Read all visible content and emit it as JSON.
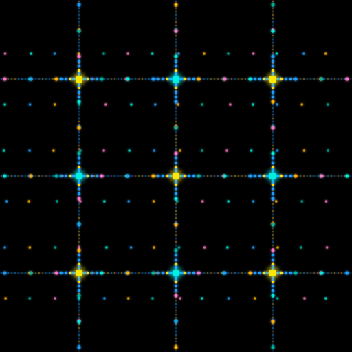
{
  "scene": {
    "description_name": "diffraction-lattice-pattern",
    "background": "#000000",
    "palette": {
      "yellow": "#ffe600",
      "cyan": "#00f0e0",
      "blue": "#1ea0ff",
      "pink": "#ff78c8",
      "orange": "#ffb400",
      "teal": "#00b4a0"
    },
    "lattice_rows": 3,
    "lattice_cols": 3,
    "node_colors": [
      [
        "yellow",
        "cyan",
        "yellow"
      ],
      [
        "cyan",
        "yellow",
        "cyan"
      ],
      [
        "yellow",
        "cyan",
        "yellow"
      ]
    ]
  }
}
